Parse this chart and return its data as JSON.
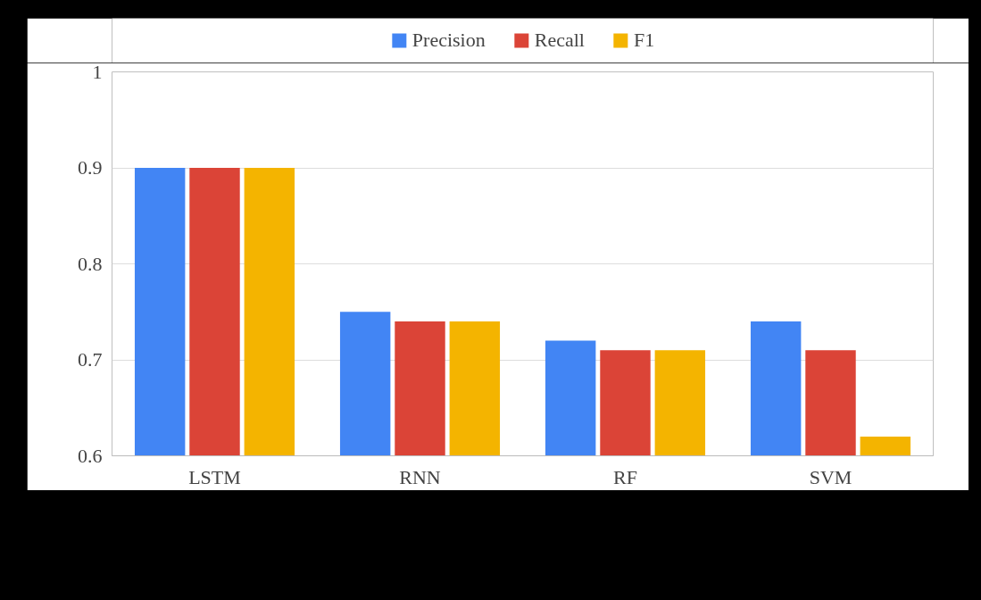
{
  "chart_data": {
    "type": "bar",
    "categories": [
      "LSTM",
      "RNN",
      "RF",
      "SVM"
    ],
    "series": [
      {
        "name": "Precision",
        "color": "#4285f4",
        "values": [
          0.9,
          0.75,
          0.72,
          0.74
        ]
      },
      {
        "name": "Recall",
        "color": "#db4437",
        "values": [
          0.9,
          0.74,
          0.71,
          0.71
        ]
      },
      {
        "name": "F1",
        "color": "#f4b400",
        "values": [
          0.9,
          0.74,
          0.71,
          0.62
        ]
      }
    ],
    "ylim": [
      0.6,
      1
    ],
    "yticks": [
      0.6,
      0.7,
      0.8,
      0.9,
      1
    ],
    "grid": "y",
    "legend": "top"
  }
}
